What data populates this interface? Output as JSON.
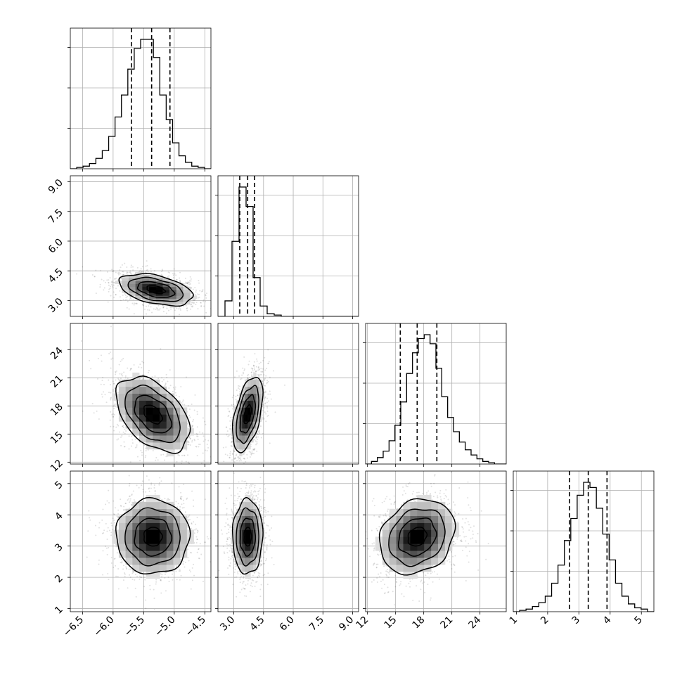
{
  "chart_data": {
    "type": "corner",
    "grid": true,
    "parameters": [
      {
        "range": [
          -6.7,
          -4.4
        ],
        "ticks": [
          -6.5,
          -6.0,
          -5.5,
          -5.0,
          -4.5
        ],
        "tick_labels": [
          "−6.5",
          "−6.0",
          "−5.5",
          "−5.0",
          "−4.5"
        ],
        "quantiles": [
          -5.7,
          -5.37,
          -5.07
        ],
        "hist_density": [
          0.0,
          0.01,
          0.02,
          0.04,
          0.08,
          0.14,
          0.25,
          0.4,
          0.57,
          0.77,
          0.93,
          1.0,
          1.0,
          0.86,
          0.57,
          0.38,
          0.2,
          0.1,
          0.05,
          0.02,
          0.01,
          0.0
        ]
      },
      {
        "range": [
          2.2,
          9.3
        ],
        "ticks": [
          3.0,
          4.5,
          6.0,
          7.5,
          9.0
        ],
        "tick_labels": [
          "3.0",
          "4.5",
          "6.0",
          "7.5",
          "9.0"
        ],
        "quantiles": [
          3.3,
          3.7,
          4.05
        ],
        "hist_density": [
          0.0,
          0.12,
          0.58,
          1.0,
          0.85,
          0.3,
          0.08,
          0.02,
          0.01,
          0.0,
          0.0,
          0.0,
          0.0,
          0.0,
          0.0,
          0.0,
          0.0,
          0.0,
          0.0,
          0.0
        ]
      },
      {
        "range": [
          11.8,
          26.8
        ],
        "ticks": [
          12,
          15,
          18,
          21,
          24
        ],
        "tick_labels": [
          "12",
          "15",
          "18",
          "21",
          "24"
        ],
        "quantiles": [
          15.5,
          17.3,
          19.4
        ],
        "hist_density": [
          0.0,
          0.02,
          0.05,
          0.1,
          0.18,
          0.3,
          0.48,
          0.7,
          0.86,
          0.97,
          1.0,
          0.93,
          0.74,
          0.52,
          0.36,
          0.25,
          0.17,
          0.11,
          0.07,
          0.04,
          0.02,
          0.01,
          0.0,
          0.0
        ]
      },
      {
        "range": [
          0.9,
          5.4
        ],
        "ticks": [
          1,
          2,
          3,
          4,
          5
        ],
        "tick_labels": [
          "1",
          "2",
          "3",
          "4",
          "5"
        ],
        "quantiles": [
          2.7,
          3.3,
          3.9
        ],
        "hist_density": [
          0.0,
          0.01,
          0.02,
          0.04,
          0.07,
          0.12,
          0.22,
          0.36,
          0.55,
          0.72,
          0.9,
          1.0,
          0.96,
          0.8,
          0.6,
          0.4,
          0.22,
          0.12,
          0.06,
          0.03,
          0.02,
          0.0
        ]
      }
    ],
    "joint": [
      {
        "x": 0,
        "y": 1,
        "center": [
          -5.3,
          3.55
        ],
        "sigma": [
          0.3,
          0.4
        ],
        "rho": -0.42
      },
      {
        "x": 0,
        "y": 2,
        "center": [
          -5.35,
          17.1
        ],
        "sigma": [
          0.3,
          2.0
        ],
        "rho": -0.45
      },
      {
        "x": 1,
        "y": 2,
        "center": [
          3.7,
          17.1
        ],
        "sigma": [
          0.38,
          2.0
        ],
        "rho": 0.5
      },
      {
        "x": 0,
        "y": 3,
        "center": [
          -5.35,
          3.3
        ],
        "sigma": [
          0.3,
          0.6
        ],
        "rho": 0.0
      },
      {
        "x": 1,
        "y": 3,
        "center": [
          3.7,
          3.3
        ],
        "sigma": [
          0.38,
          0.6
        ],
        "rho": 0.02
      },
      {
        "x": 2,
        "y": 3,
        "center": [
          17.3,
          3.3
        ],
        "sigma": [
          2.0,
          0.6
        ],
        "rho": 0.2
      }
    ],
    "contour_levels": [
      0.5,
      1.0,
      1.5,
      2.0
    ],
    "xlabel": "",
    "ylabel": ""
  }
}
